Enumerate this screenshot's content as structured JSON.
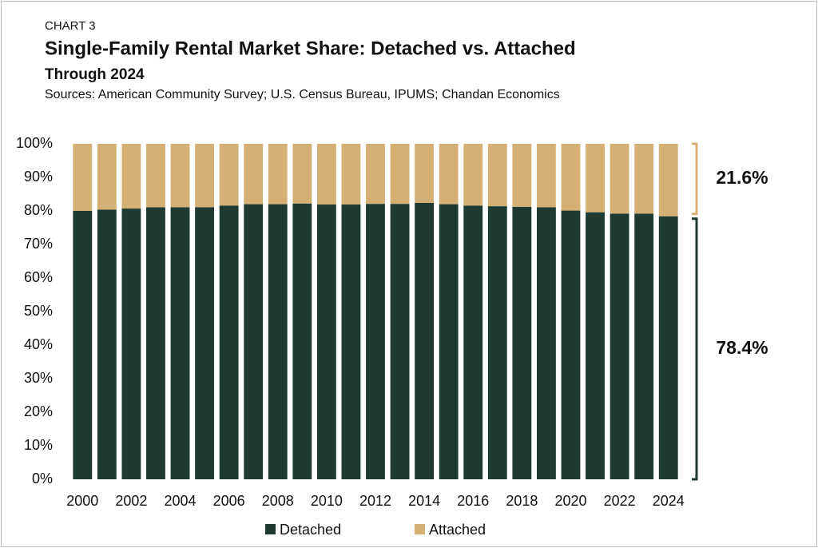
{
  "chart_data": {
    "type": "stacked_bar",
    "label": "CHART 3",
    "title": "Single-Family Rental Market Share: Detached vs. Attached",
    "subtitle": "Through 2024",
    "source": "Sources: American Community Survey; U.S. Census Bureau, IPUMS; Chandan Economics",
    "categories": [
      "2000",
      null,
      "2002",
      null,
      "2004",
      null,
      "2006",
      null,
      "2008",
      null,
      "2010",
      null,
      "2012",
      null,
      "2014",
      null,
      "2016",
      null,
      "2018",
      null,
      "2020",
      null,
      "2022",
      null,
      "2024"
    ],
    "series": [
      {
        "name": "Detached",
        "color": "#1f3a32",
        "values": [
          80.0,
          80.4,
          80.7,
          81.1,
          81.1,
          81.1,
          81.6,
          82.0,
          82.0,
          82.2,
          81.9,
          81.9,
          82.1,
          82.1,
          82.4,
          82.0,
          81.6,
          81.4,
          81.2,
          81.1,
          80.1,
          79.6,
          79.2,
          79.2,
          78.4
        ]
      },
      {
        "name": "Attached",
        "color": "#d4b074",
        "values": [
          20.0,
          19.6,
          19.3,
          18.9,
          18.9,
          18.9,
          18.4,
          18.0,
          18.0,
          17.8,
          18.1,
          18.1,
          17.9,
          17.9,
          17.6,
          18.0,
          18.4,
          18.6,
          18.8,
          18.9,
          19.9,
          20.4,
          20.8,
          20.8,
          21.6
        ]
      }
    ],
    "annotations": [
      {
        "label": "78.4%",
        "value": 78.4
      },
      {
        "label": "21.6%",
        "value": 21.6
      }
    ],
    "ylim": [
      0,
      100
    ],
    "yticks": [
      {
        "value": 0,
        "label": "0%"
      },
      {
        "value": 10,
        "label": "10%"
      },
      {
        "value": 20,
        "label": "20%"
      },
      {
        "value": 30,
        "label": "30%"
      },
      {
        "value": 40,
        "label": "40%"
      },
      {
        "value": 50,
        "label": "50%"
      },
      {
        "value": 60,
        "label": "60%"
      },
      {
        "value": 70,
        "label": "70%"
      },
      {
        "value": 80,
        "label": "80%"
      },
      {
        "value": 90,
        "label": "90%"
      },
      {
        "value": 100,
        "label": "100%"
      }
    ],
    "grid": false,
    "legend": "bottom"
  }
}
